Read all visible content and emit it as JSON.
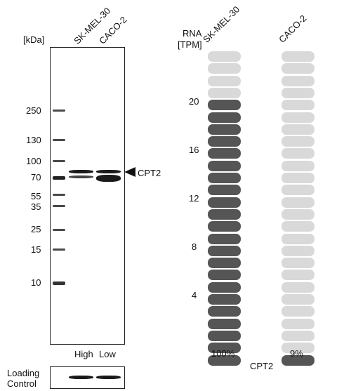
{
  "blot": {
    "unit_label": "[kDa]",
    "lanes": [
      "SK-MEL-30",
      "CACO-2"
    ],
    "markers": [
      "250",
      "130",
      "100",
      "70",
      "55",
      "35",
      "25",
      "15",
      "10"
    ],
    "target_label": "CPT2",
    "expression_labels": [
      "High",
      "Low"
    ],
    "loading_control_label_1": "Loading",
    "loading_control_label_2": "Control"
  },
  "rna": {
    "header_1": "RNA",
    "header_2": "[TPM]",
    "cell_lines": [
      "SK-MEL-30",
      "CACO-2"
    ],
    "ticks": [
      "20",
      "16",
      "12",
      "8",
      "4"
    ],
    "total_pills": 26,
    "sk_filled": 22,
    "caco_filled": 1,
    "sk_percent": "100%",
    "caco_percent": "9%",
    "gene": "CPT2",
    "filled_color": "#555555",
    "empty_color": "#d9d9d9"
  }
}
